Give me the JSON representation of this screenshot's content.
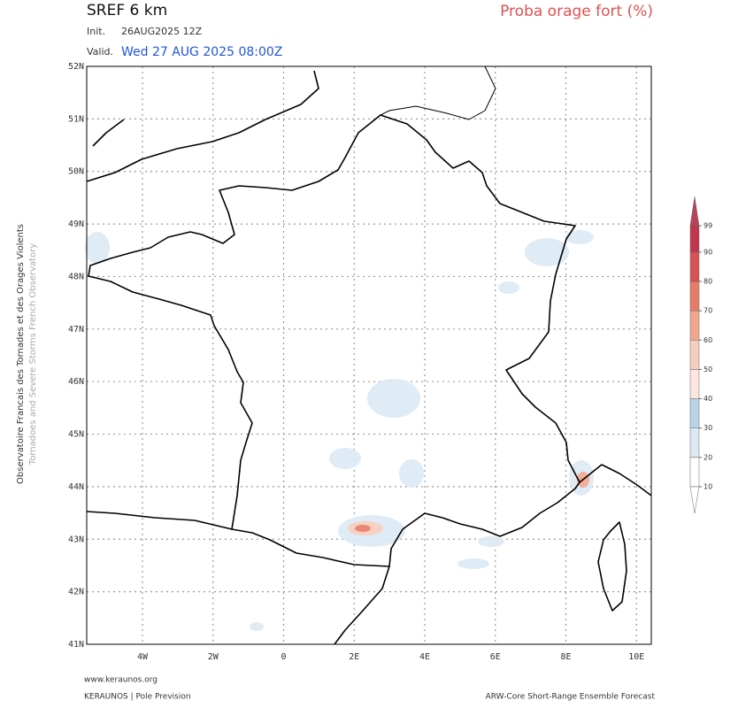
{
  "header": {
    "title": "SREF 6 km",
    "init_label": "Init.",
    "init": "26AUG2025 12Z",
    "valid_label": "Valid.",
    "valid": "Wed 27 AUG 2025 08:00Z",
    "product": "Proba orage fort (%)"
  },
  "map": {
    "lat_range": [
      41,
      52
    ],
    "lon_range": [
      -5.58,
      10.42
    ],
    "lat_ticks": [
      {
        "value": 52,
        "label": "52N"
      },
      {
        "value": 51,
        "label": "51N"
      },
      {
        "value": 50,
        "label": "50N"
      },
      {
        "value": 49,
        "label": "49N"
      },
      {
        "value": 48,
        "label": "48N"
      },
      {
        "value": 47,
        "label": "47N"
      },
      {
        "value": 46,
        "label": "46N"
      },
      {
        "value": 45,
        "label": "45N"
      },
      {
        "value": 44,
        "label": "44N"
      },
      {
        "value": 43,
        "label": "43N"
      },
      {
        "value": 42,
        "label": "42N"
      },
      {
        "value": 41,
        "label": "41N"
      }
    ],
    "lon_ticks": [
      {
        "value": -4,
        "label": "4W"
      },
      {
        "value": -2,
        "label": "2W"
      },
      {
        "value": 0,
        "label": "0"
      },
      {
        "value": 2,
        "label": "2E"
      },
      {
        "value": 4,
        "label": "4E"
      },
      {
        "value": 6,
        "label": "6E"
      },
      {
        "value": 8,
        "label": "8E"
      },
      {
        "value": 10,
        "label": "10E"
      }
    ]
  },
  "colorbar": {
    "ticks": [
      10,
      20,
      30,
      40,
      50,
      60,
      70,
      80,
      90,
      99
    ],
    "colors": [
      "#ffffff",
      "#dce9f4",
      "#b9d4ea",
      "#fde6dd",
      "#f9cdbb",
      "#f2a68d",
      "#e67c68",
      "#d75254",
      "#c3354f"
    ],
    "over_color": "#b9425a"
  },
  "side": {
    "observatory_fr": "Observatoire Francais des Tornades et des Orages Violents",
    "observatory_en": "Tornadoes and Severe Storms French Observatory"
  },
  "footer": {
    "website": "www.keraunos.org",
    "org": "KERAUNOS | Pole Prevision",
    "model": "ARW-Core Short-Range Ensemble Forecast"
  }
}
